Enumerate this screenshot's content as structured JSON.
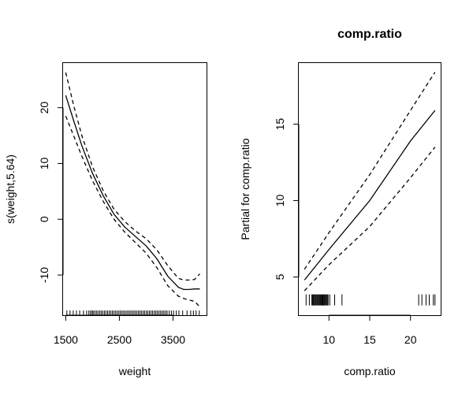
{
  "chart_data": [
    {
      "type": "line",
      "title": "",
      "xlabel": "weight",
      "ylabel": "s(weight,5.64)",
      "xlim": [
        1450,
        4125
      ],
      "ylim": [
        -17.2,
        28.0
      ],
      "xticks": [
        1500,
        2500,
        3500
      ],
      "yticks": [
        -10,
        0,
        10,
        20
      ],
      "grid": false,
      "legend": "none",
      "series": [
        {
          "role": "fit",
          "style": "solid",
          "x": [
            1500,
            1650,
            1800,
            2000,
            2200,
            2400,
            2600,
            2800,
            3000,
            3200,
            3400,
            3600,
            3700,
            3800,
            3900,
            4000
          ],
          "values": [
            22.2,
            17.6,
            13.2,
            8.2,
            4.2,
            0.9,
            -1.4,
            -3.1,
            -4.8,
            -7.1,
            -10.2,
            -12.2,
            -12.6,
            -12.6,
            -12.5,
            -12.5
          ]
        },
        {
          "role": "upper-band",
          "style": "dashed",
          "x": [
            1500,
            1650,
            1800,
            2000,
            2200,
            2400,
            2600,
            2800,
            3000,
            3200,
            3400,
            3600,
            3700,
            3800,
            3900,
            4000
          ],
          "values": [
            26.3,
            20.3,
            15.0,
            9.4,
            5.1,
            1.8,
            -0.4,
            -2.1,
            -3.5,
            -5.5,
            -8.3,
            -10.6,
            -10.9,
            -10.9,
            -10.8,
            -9.8
          ]
        },
        {
          "role": "lower-band",
          "style": "dashed",
          "x": [
            1500,
            1650,
            1800,
            2000,
            2200,
            2400,
            2600,
            2800,
            3000,
            3200,
            3400,
            3600,
            3700,
            3800,
            3900,
            4000
          ],
          "values": [
            18.5,
            14.9,
            11.3,
            6.9,
            3.2,
            0.0,
            -2.3,
            -4.2,
            -6.1,
            -8.7,
            -11.9,
            -13.8,
            -14.2,
            -14.5,
            -14.7,
            -15.7
          ]
        }
      ],
      "rug": [
        1520,
        1580,
        1640,
        1700,
        1760,
        1830,
        1890,
        1930,
        1960,
        1990,
        2010,
        2040,
        2070,
        2100,
        2130,
        2160,
        2190,
        2220,
        2250,
        2280,
        2310,
        2340,
        2370,
        2400,
        2430,
        2460,
        2490,
        2520,
        2550,
        2580,
        2610,
        2640,
        2670,
        2700,
        2730,
        2760,
        2790,
        2820,
        2850,
        2880,
        2910,
        2940,
        2970,
        3000,
        3030,
        3060,
        3090,
        3120,
        3150,
        3180,
        3210,
        3240,
        3270,
        3300,
        3330,
        3360,
        3390,
        3430,
        3470,
        3510,
        3560,
        3610,
        3680,
        3760,
        3830,
        3880,
        3930,
        3990
      ]
    },
    {
      "type": "line",
      "title": "comp.ratio",
      "xlabel": "comp.ratio",
      "ylabel": "Partial for comp.ratio",
      "xlim": [
        6.3,
        23.7
      ],
      "ylim": [
        2.5,
        19.0
      ],
      "xticks": [
        10,
        15,
        20
      ],
      "yticks": [
        5,
        10,
        15
      ],
      "grid": false,
      "legend": "none",
      "series": [
        {
          "role": "fit",
          "style": "solid",
          "x": [
            7.0,
            10.0,
            15.0,
            20.0,
            23.0
          ],
          "values": [
            4.8,
            6.8,
            10.0,
            13.9,
            15.9
          ]
        },
        {
          "role": "upper-band",
          "style": "dashed",
          "x": [
            7.0,
            10.0,
            15.0,
            20.0,
            23.0
          ],
          "values": [
            5.5,
            7.9,
            11.7,
            15.9,
            18.4
          ]
        },
        {
          "role": "lower-band",
          "style": "dashed",
          "x": [
            7.0,
            10.0,
            15.0,
            20.0,
            23.0
          ],
          "values": [
            4.1,
            5.8,
            8.3,
            11.5,
            13.5
          ]
        }
      ],
      "rug_y": 3.5,
      "rug": [
        7.2,
        7.6,
        7.9,
        8.0,
        8.1,
        8.2,
        8.3,
        8.4,
        8.5,
        8.6,
        8.7,
        8.8,
        8.9,
        9.0,
        9.1,
        9.2,
        9.3,
        9.4,
        9.5,
        9.6,
        9.7,
        9.8,
        9.9,
        10.1,
        10.7,
        11.6,
        21.0,
        21.4,
        21.9,
        22.3,
        22.8,
        23.0
      ]
    }
  ]
}
